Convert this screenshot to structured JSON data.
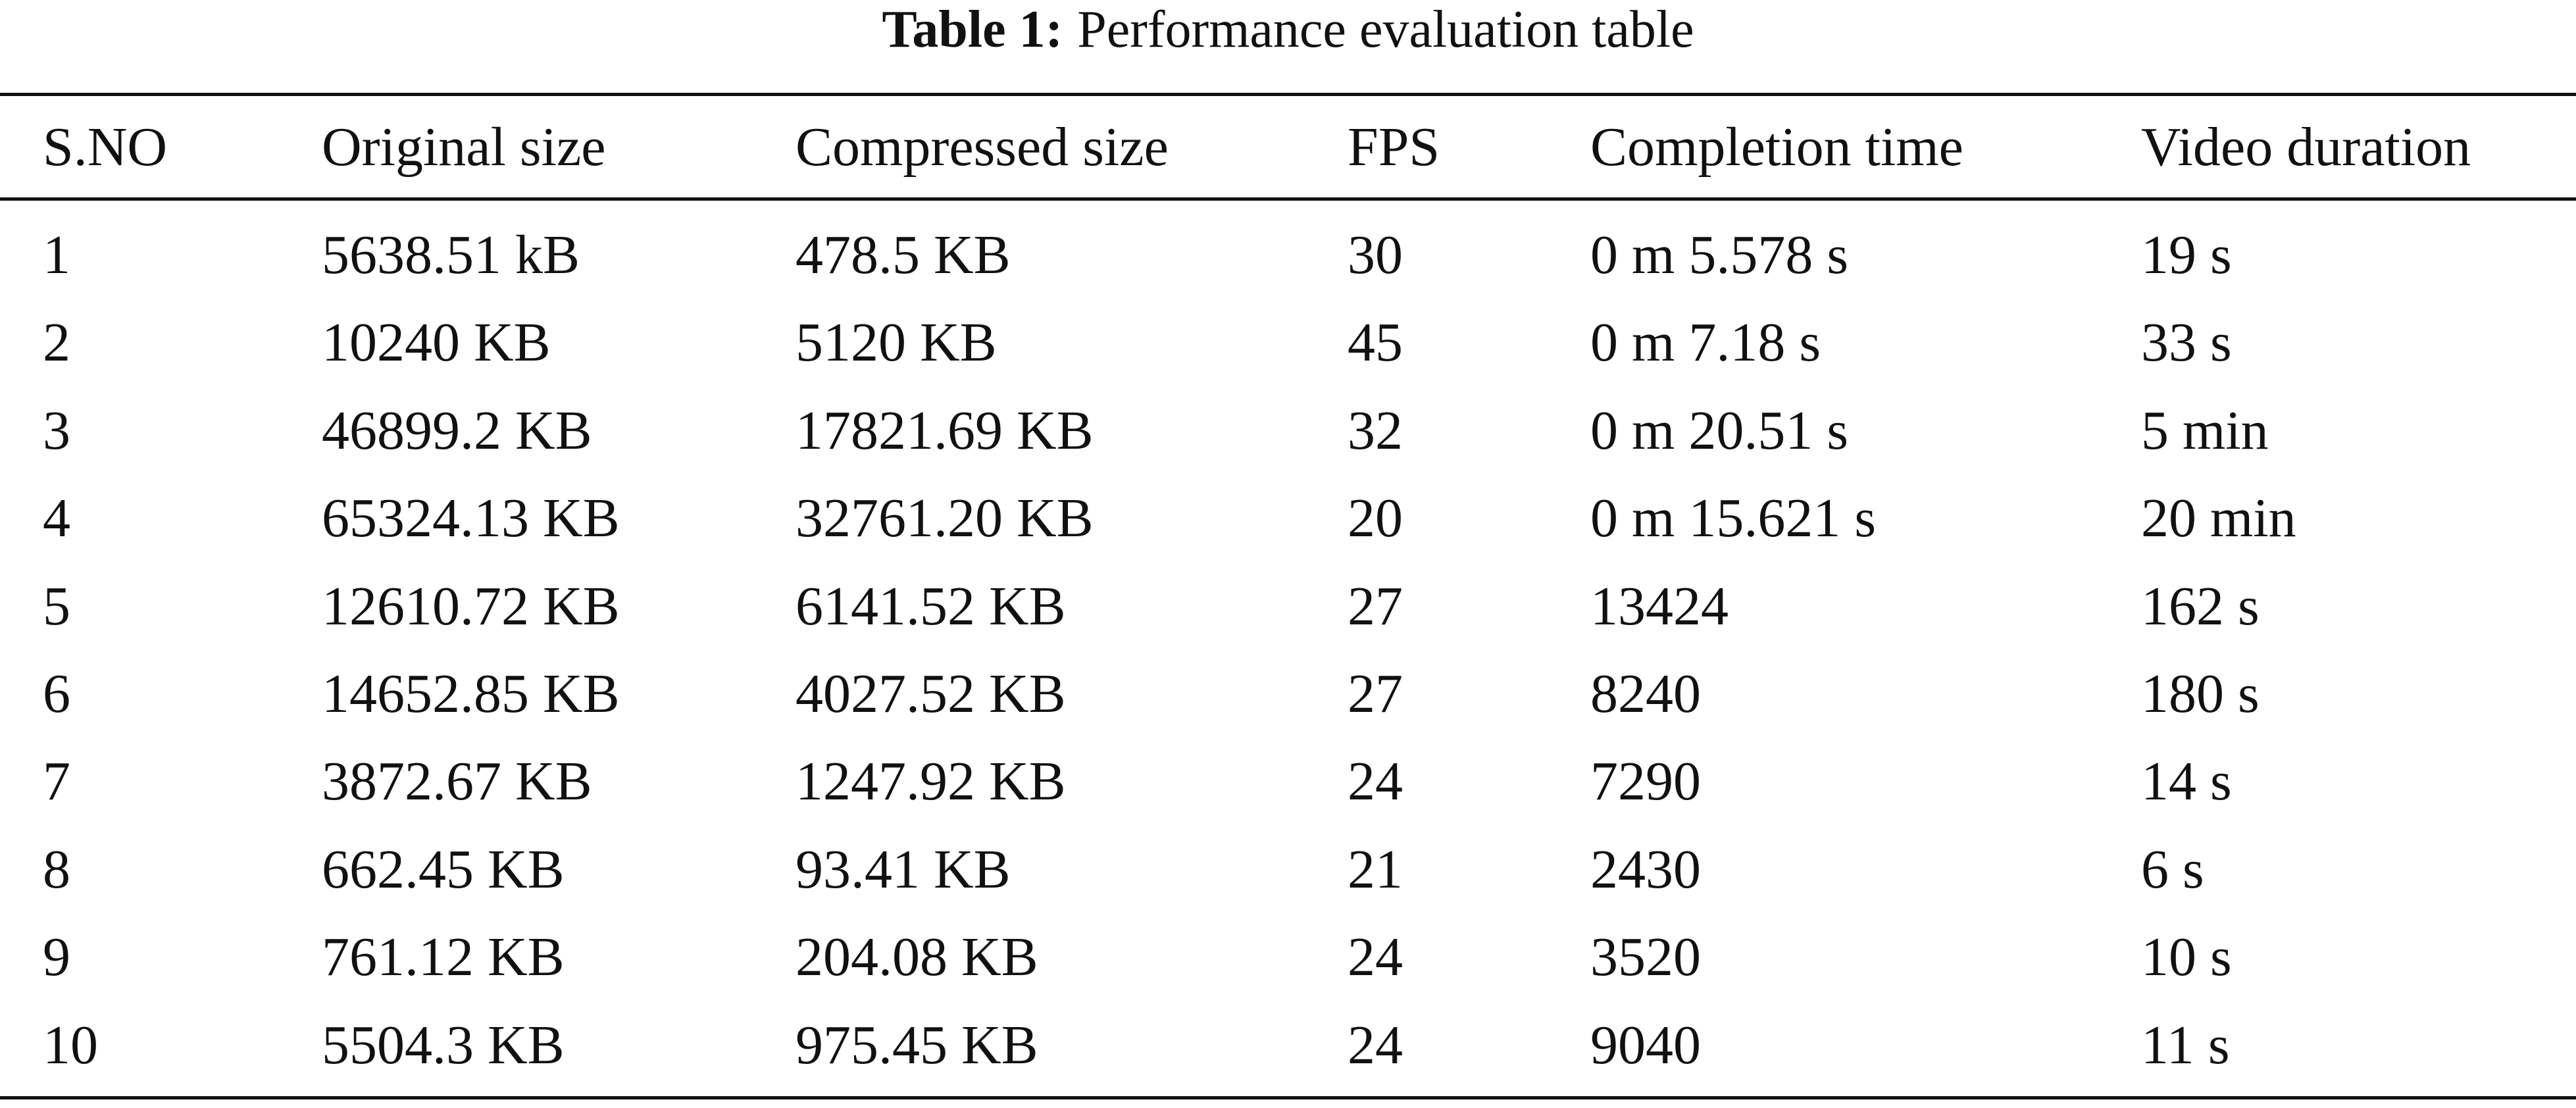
{
  "caption": {
    "label": "Table 1:",
    "text": "Performance evaluation table"
  },
  "table": {
    "header": [
      "S.NO",
      "Original size",
      "Compressed size",
      "FPS",
      "Completion time",
      "Video duration"
    ],
    "rows": [
      [
        "1",
        "5638.51 kB",
        "478.5 KB",
        "30",
        "0 m 5.578 s",
        "19 s"
      ],
      [
        "2",
        "10240 KB",
        "5120 KB",
        "45",
        "0 m 7.18 s",
        "33 s"
      ],
      [
        "3",
        "46899.2 KB",
        "17821.69 KB",
        "32",
        "0 m 20.51 s",
        "5 min"
      ],
      [
        "4",
        "65324.13 KB",
        "32761.20 KB",
        "20",
        "0 m 15.621 s",
        "20 min"
      ],
      [
        "5",
        "12610.72 KB",
        "6141.52 KB",
        "27",
        "13424",
        "162 s"
      ],
      [
        "6",
        "14652.85 KB",
        "4027.52 KB",
        "27",
        "8240",
        "180 s"
      ],
      [
        "7",
        "3872.67 KB",
        "1247.92 KB",
        "24",
        "7290",
        "14 s"
      ],
      [
        "8",
        "662.45 KB",
        "93.41 KB",
        "21",
        "2430",
        "6 s"
      ],
      [
        "9",
        "761.12 KB",
        "204.08 KB",
        "24",
        "3520",
        "10 s"
      ],
      [
        "10",
        "5504.3 KB",
        "975.45 KB",
        "24",
        "9040",
        "11 s"
      ]
    ]
  }
}
